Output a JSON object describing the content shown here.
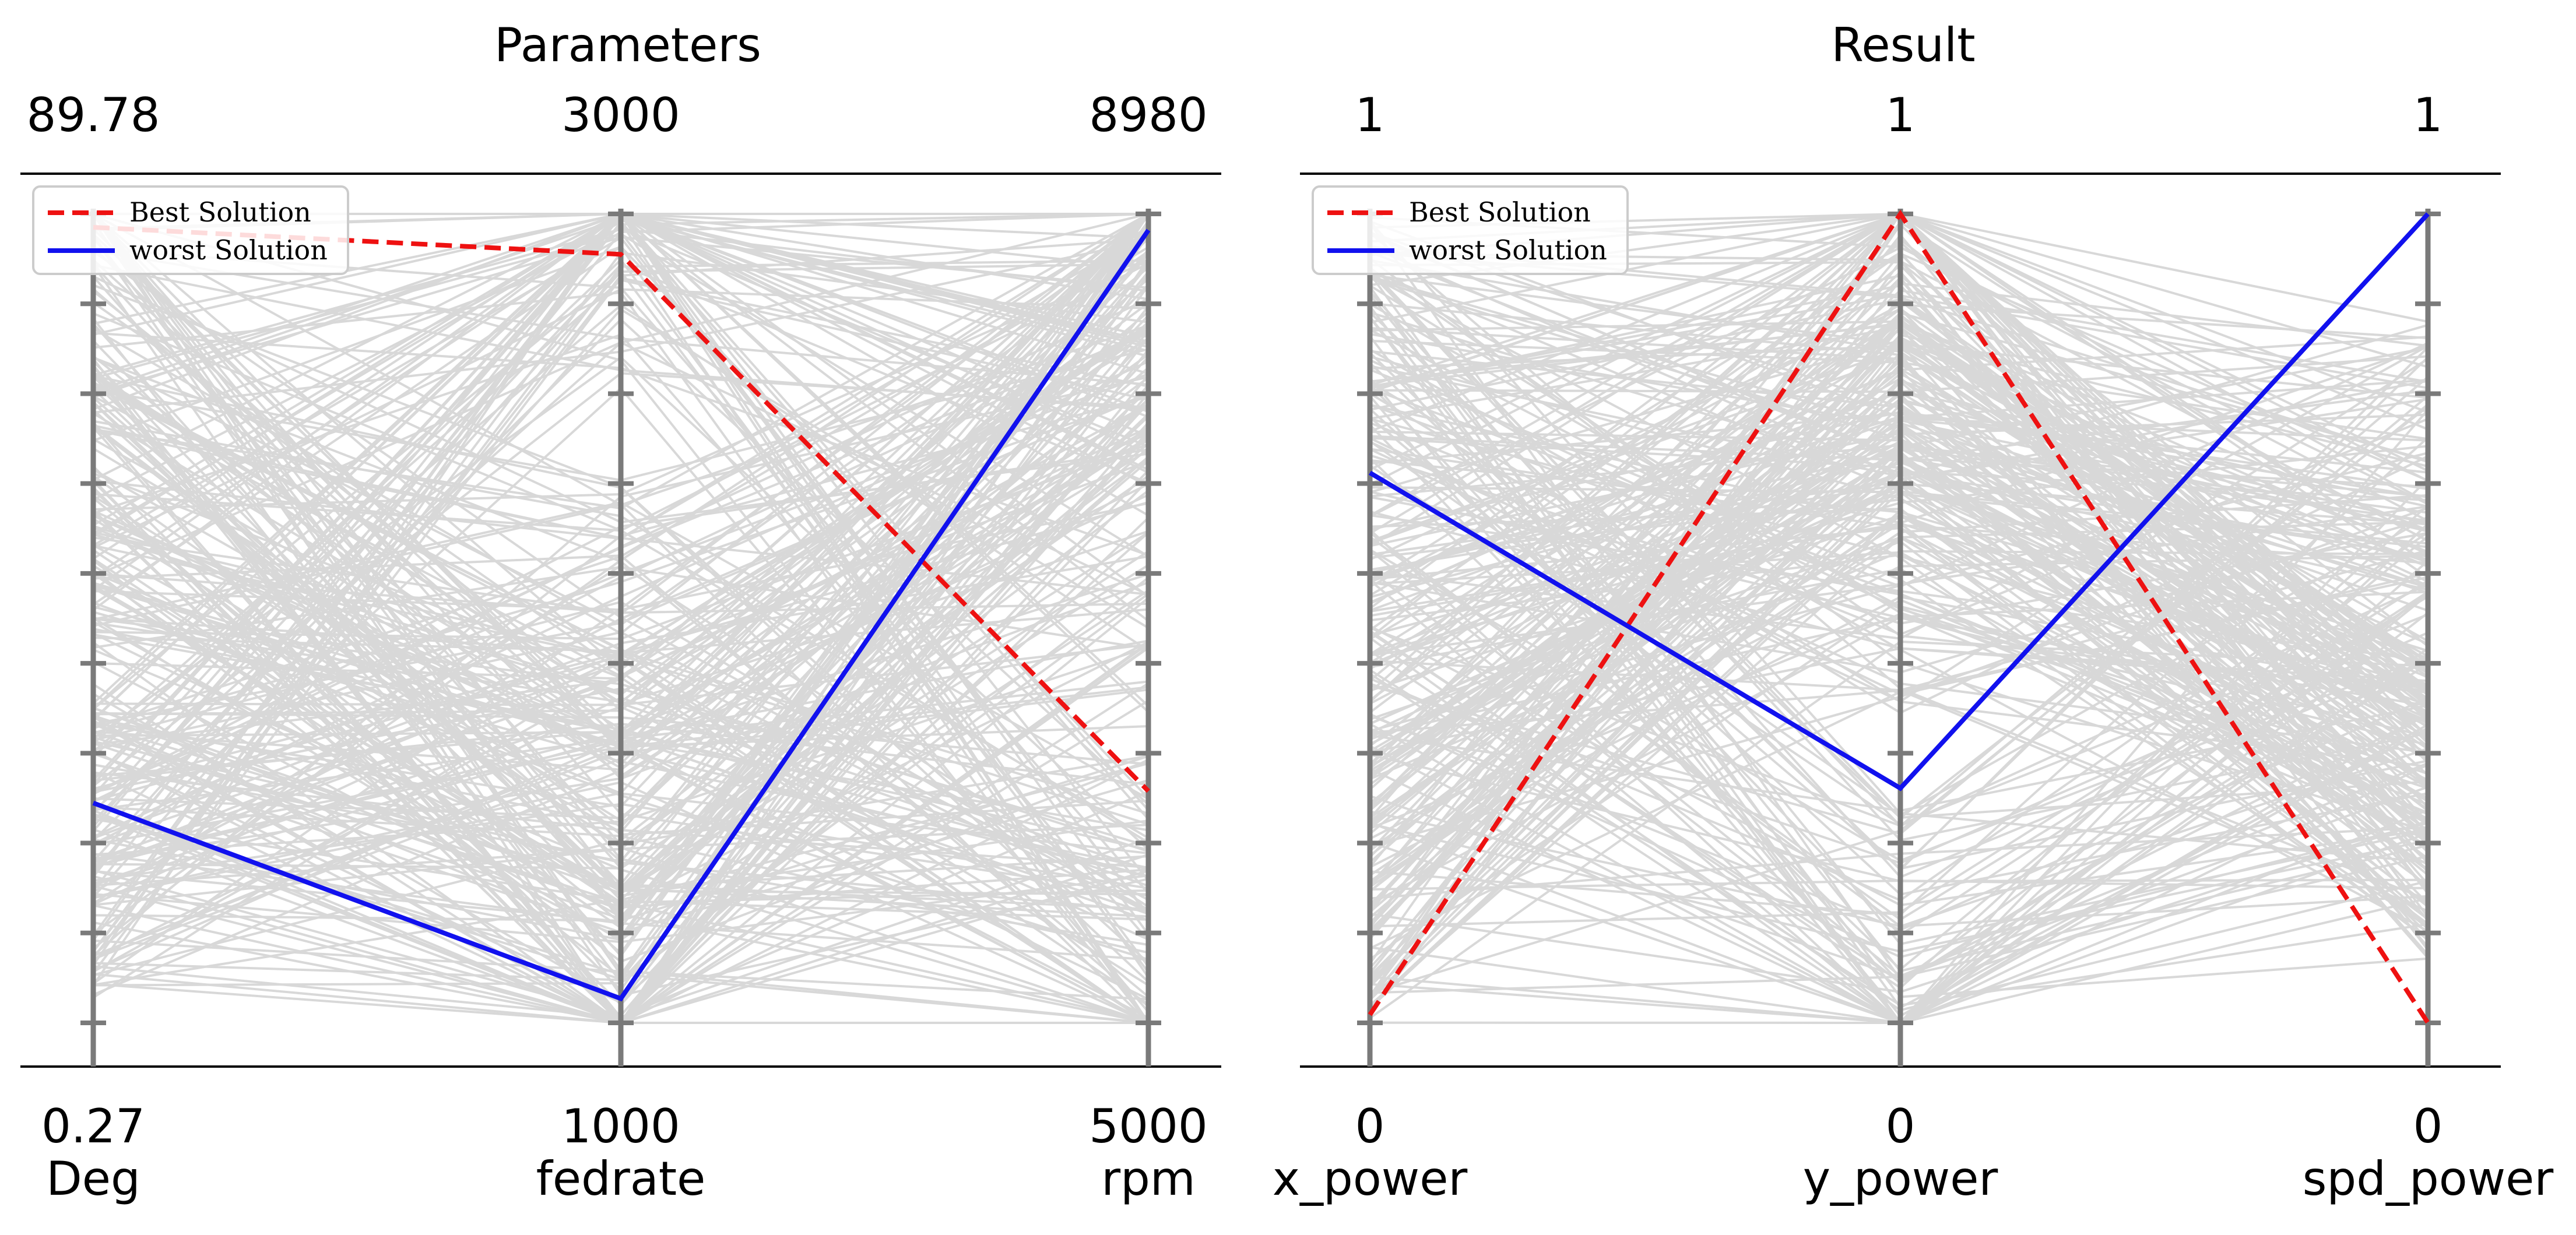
{
  "chart_data": [
    {
      "type": "parallel_coordinates",
      "title": "Parameters",
      "axes": [
        {
          "name": "Deg",
          "min_label": "0.27",
          "max_label": "89.78",
          "min": 0.27,
          "max": 89.78
        },
        {
          "name": "fedrate",
          "min_label": "1000",
          "max_label": "3000",
          "min": 1000,
          "max": 3000
        },
        {
          "name": "rpm",
          "min_label": "5000",
          "max_label": "8980",
          "min": 5000,
          "max": 8980
        }
      ],
      "highlight": [
        {
          "name": "Best Solution",
          "color": "#ee1111",
          "dash": true,
          "values": [
            88.3,
            2900,
            6140
          ]
        },
        {
          "name": "worst Solution",
          "color": "#1111ee",
          "dash": false,
          "values": [
            24.6,
            1060,
            8900
          ]
        }
      ],
      "legend": {
        "position": "top-left"
      },
      "background_line_count": 300,
      "background_color": "#808080"
    },
    {
      "type": "parallel_coordinates",
      "title": "Result",
      "axes": [
        {
          "name": "x_power",
          "min_label": "0",
          "max_label": "1",
          "min": 0,
          "max": 1
        },
        {
          "name": "y_power",
          "min_label": "0",
          "max_label": "1",
          "min": 0,
          "max": 1
        },
        {
          "name": "spd_power",
          "min_label": "0",
          "max_label": "1",
          "min": 0,
          "max": 1
        }
      ],
      "highlight": [
        {
          "name": "Best Solution",
          "color": "#ee1111",
          "dash": true,
          "values": [
            0.01,
            1.0,
            0.0
          ]
        },
        {
          "name": "worst Solution",
          "color": "#1111ee",
          "dash": false,
          "values": [
            0.68,
            0.29,
            1.0
          ]
        }
      ],
      "legend": {
        "position": "top-left"
      },
      "background_line_count": 300,
      "background_color": "#808080"
    }
  ]
}
